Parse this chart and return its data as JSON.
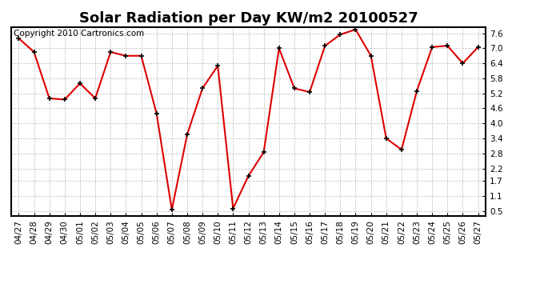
{
  "title": "Solar Radiation per Day KW/m2 20100527",
  "copyright": "Copyright 2010 Cartronics.com",
  "dates": [
    "04/27",
    "04/28",
    "04/29",
    "04/30",
    "05/01",
    "05/02",
    "05/03",
    "05/04",
    "05/05",
    "05/06",
    "05/07",
    "05/08",
    "05/09",
    "05/10",
    "05/11",
    "05/12",
    "05/13",
    "05/14",
    "05/15",
    "05/16",
    "05/17",
    "05/18",
    "05/19",
    "05/20",
    "05/21",
    "05/22",
    "05/23",
    "05/24",
    "05/25",
    "05/26",
    "05/27"
  ],
  "values": [
    7.4,
    6.85,
    5.0,
    4.95,
    5.6,
    5.0,
    6.85,
    6.7,
    6.7,
    4.4,
    0.55,
    3.55,
    5.4,
    6.3,
    0.6,
    1.9,
    2.85,
    7.0,
    5.4,
    5.25,
    7.1,
    7.55,
    7.75,
    6.7,
    3.4,
    2.95,
    5.3,
    7.05,
    7.1,
    6.4,
    7.05
  ],
  "line_color": "#dd0000",
  "marker_color": "#000000",
  "background_color": "#ffffff",
  "grid_color": "#bbbbbb",
  "yticks": [
    0.5,
    1.1,
    1.7,
    2.2,
    2.8,
    3.4,
    4.0,
    4.6,
    5.2,
    5.8,
    6.4,
    7.0,
    7.6
  ],
  "ylim": [
    0.3,
    7.85
  ],
  "title_fontsize": 13,
  "copyright_fontsize": 7.5,
  "tick_fontsize": 7.5,
  "figwidth": 6.9,
  "figheight": 3.75,
  "dpi": 100
}
